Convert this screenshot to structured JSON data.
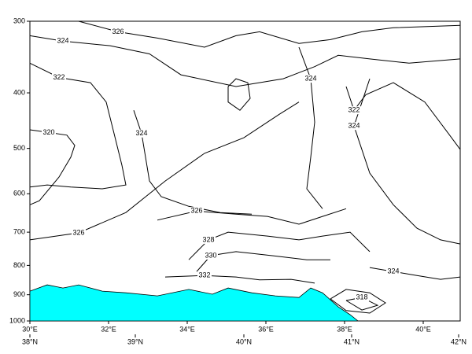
{
  "chart_data": {
    "type": "contour",
    "xlim": [
      30,
      40.94
    ],
    "ylim": [
      300,
      1000
    ],
    "y_log": true,
    "y_inverted": true,
    "yticks": [
      300,
      400,
      500,
      600,
      700,
      800,
      900,
      1000
    ],
    "xticks": [
      {
        "value": 30,
        "label": "30°E"
      },
      {
        "value": 32,
        "label": "32°E"
      },
      {
        "value": 34,
        "label": "34°E"
      },
      {
        "value": 36,
        "label": "36°E"
      },
      {
        "value": 38,
        "label": "38°E"
      },
      {
        "value": 40,
        "label": "40°E"
      }
    ],
    "xticks2": [
      {
        "value": 30,
        "label": "38°N"
      },
      {
        "value": 32.68,
        "label": "39°N"
      },
      {
        "value": 35.44,
        "label": "40°N"
      },
      {
        "value": 38.18,
        "label": "41°N"
      },
      {
        "value": 40.9,
        "label": "42°N"
      }
    ],
    "terrain": {
      "color": "#00ffff",
      "x": [
        30,
        30.44,
        30.84,
        31.24,
        31.84,
        32.44,
        33.24,
        34.04,
        34.64,
        35.04,
        35.64,
        36.24,
        36.84,
        37.14,
        37.44,
        37.84,
        38.14,
        38.34
      ],
      "y": [
        887,
        865,
        876,
        865,
        887,
        893,
        904,
        881,
        898,
        876,
        893,
        904,
        910,
        876,
        893,
        945,
        975,
        1000
      ]
    },
    "contours": [
      {
        "level": 326,
        "labeled": true,
        "x": [
          31.24,
          32.24,
          33.24,
          34.44,
          35.24,
          35.84,
          36.84,
          37.64,
          38.44,
          39.24,
          40.94
        ],
        "y": [
          300,
          313,
          321,
          333,
          318,
          313,
          328,
          323,
          313,
          308,
          305
        ]
      },
      {
        "level": 324,
        "labeled": true,
        "x": [
          30,
          30.84,
          32.04,
          33.04,
          33.84,
          35.24,
          36.44,
          37.24,
          37.84,
          38.64,
          39.64,
          40.94
        ],
        "y": [
          318,
          325,
          331,
          342,
          372,
          390,
          378,
          360,
          344,
          349,
          355,
          349
        ]
      },
      {
        "level": 322,
        "labeled": true,
        "x": [
          30,
          30.74,
          31.54,
          31.94,
          32.14,
          32.34,
          32.44,
          31.84,
          31.04,
          30.44,
          30
        ],
        "y": [
          355,
          376,
          384,
          415,
          471,
          535,
          579,
          588,
          584,
          579,
          584
        ]
      },
      {
        "level": 320,
        "labeled": true,
        "x": [
          30,
          30.48,
          30.94,
          31.14,
          31.04,
          30.74,
          30.24,
          30
        ],
        "y": [
          464,
          469,
          474,
          494,
          518,
          561,
          617,
          627
        ]
      },
      {
        "level": 324,
        "labeled": true,
        "x": [
          32.64,
          32.84,
          32.94,
          33.04,
          33.34,
          34.04,
          34.84,
          35.64
        ],
        "y": [
          429,
          471,
          518,
          570,
          607,
          631,
          647,
          651
        ]
      },
      {
        "level": 326,
        "labeled": true,
        "x": [
          30,
          31.24,
          32.44,
          33.44,
          34.44,
          35.44,
          36.34,
          36.84
        ],
        "y": [
          722,
          702,
          647,
          570,
          510,
          479,
          436,
          415
        ]
      },
      {
        "level": 326,
        "labeled": true,
        "x": [
          33.24,
          34.24,
          35.24,
          36.04,
          36.84,
          37.44,
          38.04
        ],
        "y": [
          667,
          643,
          651,
          657,
          678,
          657,
          637
        ]
      },
      {
        "level": 328,
        "labeled": true,
        "x": [
          34.04,
          34.54,
          35.04,
          36.04,
          36.84,
          37.44,
          38.14,
          38.64
        ],
        "y": [
          782,
          722,
          700,
          711,
          722,
          711,
          700,
          757
        ]
      },
      {
        "level": 330,
        "labeled": true,
        "x": [
          34.24,
          34.6,
          35.24,
          36.14,
          37.04,
          37.64
        ],
        "y": [
          820,
          769,
          757,
          769,
          782,
          782
        ]
      },
      {
        "level": 332,
        "labeled": true,
        "x": [
          33.44,
          34.44,
          35.24,
          35.84,
          36.64,
          37.24
        ],
        "y": [
          838,
          833,
          838,
          848,
          846,
          859
        ]
      },
      {
        "level": 324,
        "labeled": true,
        "x": [
          38.64,
          38.24,
          38.64,
          39.24,
          39.84,
          40.44,
          40.94
        ],
        "y": [
          378,
          457,
          552,
          627,
          689,
          722,
          734
        ]
      },
      {
        "level": 324,
        "labeled": true,
        "x": [
          38.64,
          39.24,
          39.84,
          40.44,
          40.94
        ],
        "y": [
          807,
          820,
          833,
          846,
          838
        ]
      },
      {
        "level": 322,
        "labeled": true,
        "x": [
          38.04,
          38.24,
          38.54,
          39.24,
          40.04,
          40.64,
          40.94
        ],
        "y": [
          390,
          429,
          403,
          384,
          415,
          471,
          502
        ]
      },
      {
        "level": 324,
        "labeled": true,
        "x": [
          36.84,
          37.14,
          37.24,
          37.14,
          37.04,
          37.44
        ],
        "y": [
          333,
          378,
          450,
          518,
          588,
          637
        ]
      },
      {
        "level": 328,
        "labeled": false,
        "x": [
          35.04,
          35.24,
          35.54,
          35.6,
          35.34,
          35.04,
          35.04
        ],
        "y": [
          390,
          378,
          384,
          409,
          429,
          415,
          390
        ]
      },
      {
        "level": 320,
        "labeled": false,
        "x": [
          37.64,
          38.04,
          38.64,
          39.04,
          38.64,
          38.04,
          37.64
        ],
        "y": [
          915,
          881,
          893,
          930,
          969,
          959,
          915
        ]
      },
      {
        "level": 318,
        "labeled": true,
        "x": [
          38.04,
          38.44,
          38.84,
          38.44,
          38.04
        ],
        "y": [
          921,
          910,
          939,
          957,
          921
        ]
      }
    ]
  }
}
